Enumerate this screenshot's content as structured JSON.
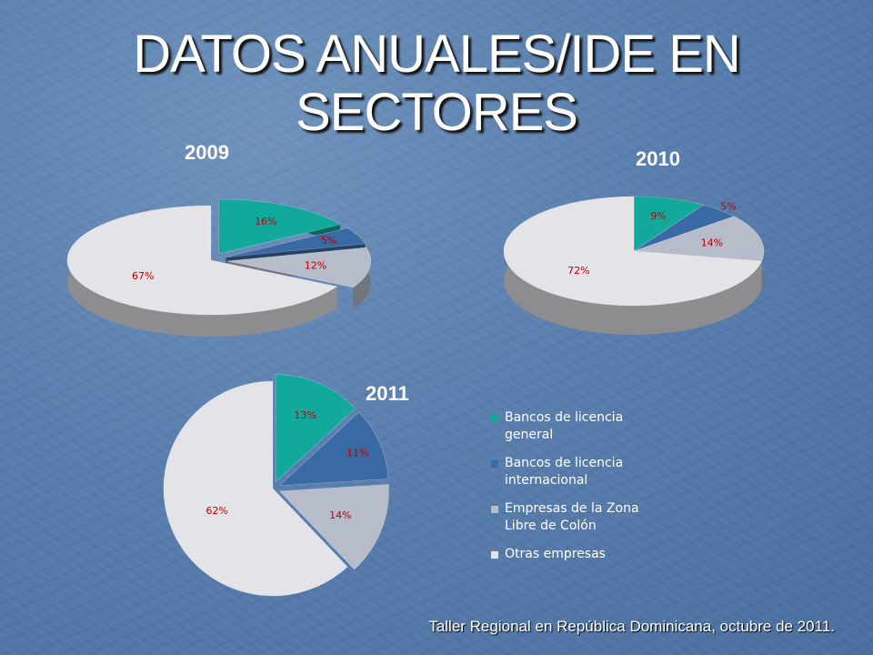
{
  "slide": {
    "title_line1": "DATOS ANUALES/IDE EN",
    "title_line2": "SECTORES",
    "footer": "Taller Regional en República Dominicana, octubre de 2011."
  },
  "colors": {
    "general": "#12a89b",
    "internacional": "#3a6aa3",
    "zona": "#b7bccb",
    "otras": "#e4e4e8",
    "label": "#c00000"
  },
  "chart_data": [
    {
      "type": "pie",
      "title": "2009",
      "categories": [
        "Bancos de licencia general",
        "Bancos de licencia internacional",
        "Empresas de la Zona Libre de Colón",
        "Otras empresas"
      ],
      "values": [
        16,
        5,
        12,
        67
      ],
      "labels": [
        "16%",
        "5%",
        "12%",
        "67%"
      ]
    },
    {
      "type": "pie",
      "title": "2010",
      "categories": [
        "Bancos de licencia general",
        "Bancos de licencia internacional",
        "Empresas de la Zona Libre de Colón",
        "Otras empresas"
      ],
      "values": [
        9,
        5,
        14,
        72
      ],
      "labels": [
        "9%",
        "5%",
        "14%",
        "72%"
      ]
    },
    {
      "type": "pie",
      "title": "2011",
      "categories": [
        "Bancos de licencia general",
        "Bancos de licencia internacional",
        "Empresas de la Zona Libre de Colón",
        "Otras empresas"
      ],
      "values": [
        13,
        11,
        14,
        62
      ],
      "labels": [
        "13%",
        "11%",
        "14%",
        "62%"
      ]
    }
  ],
  "legend": {
    "placement": "right",
    "items": [
      {
        "line1": "Bancos de licencia",
        "line2": "general",
        "key": "general"
      },
      {
        "line1": "Bancos de licencia",
        "line2": "internacional",
        "key": "internacional"
      },
      {
        "line1": "Empresas de la Zona",
        "line2": "Libre de Colón",
        "key": "zona"
      },
      {
        "line1": "Otras empresas",
        "line2": "",
        "key": "otras"
      }
    ]
  }
}
